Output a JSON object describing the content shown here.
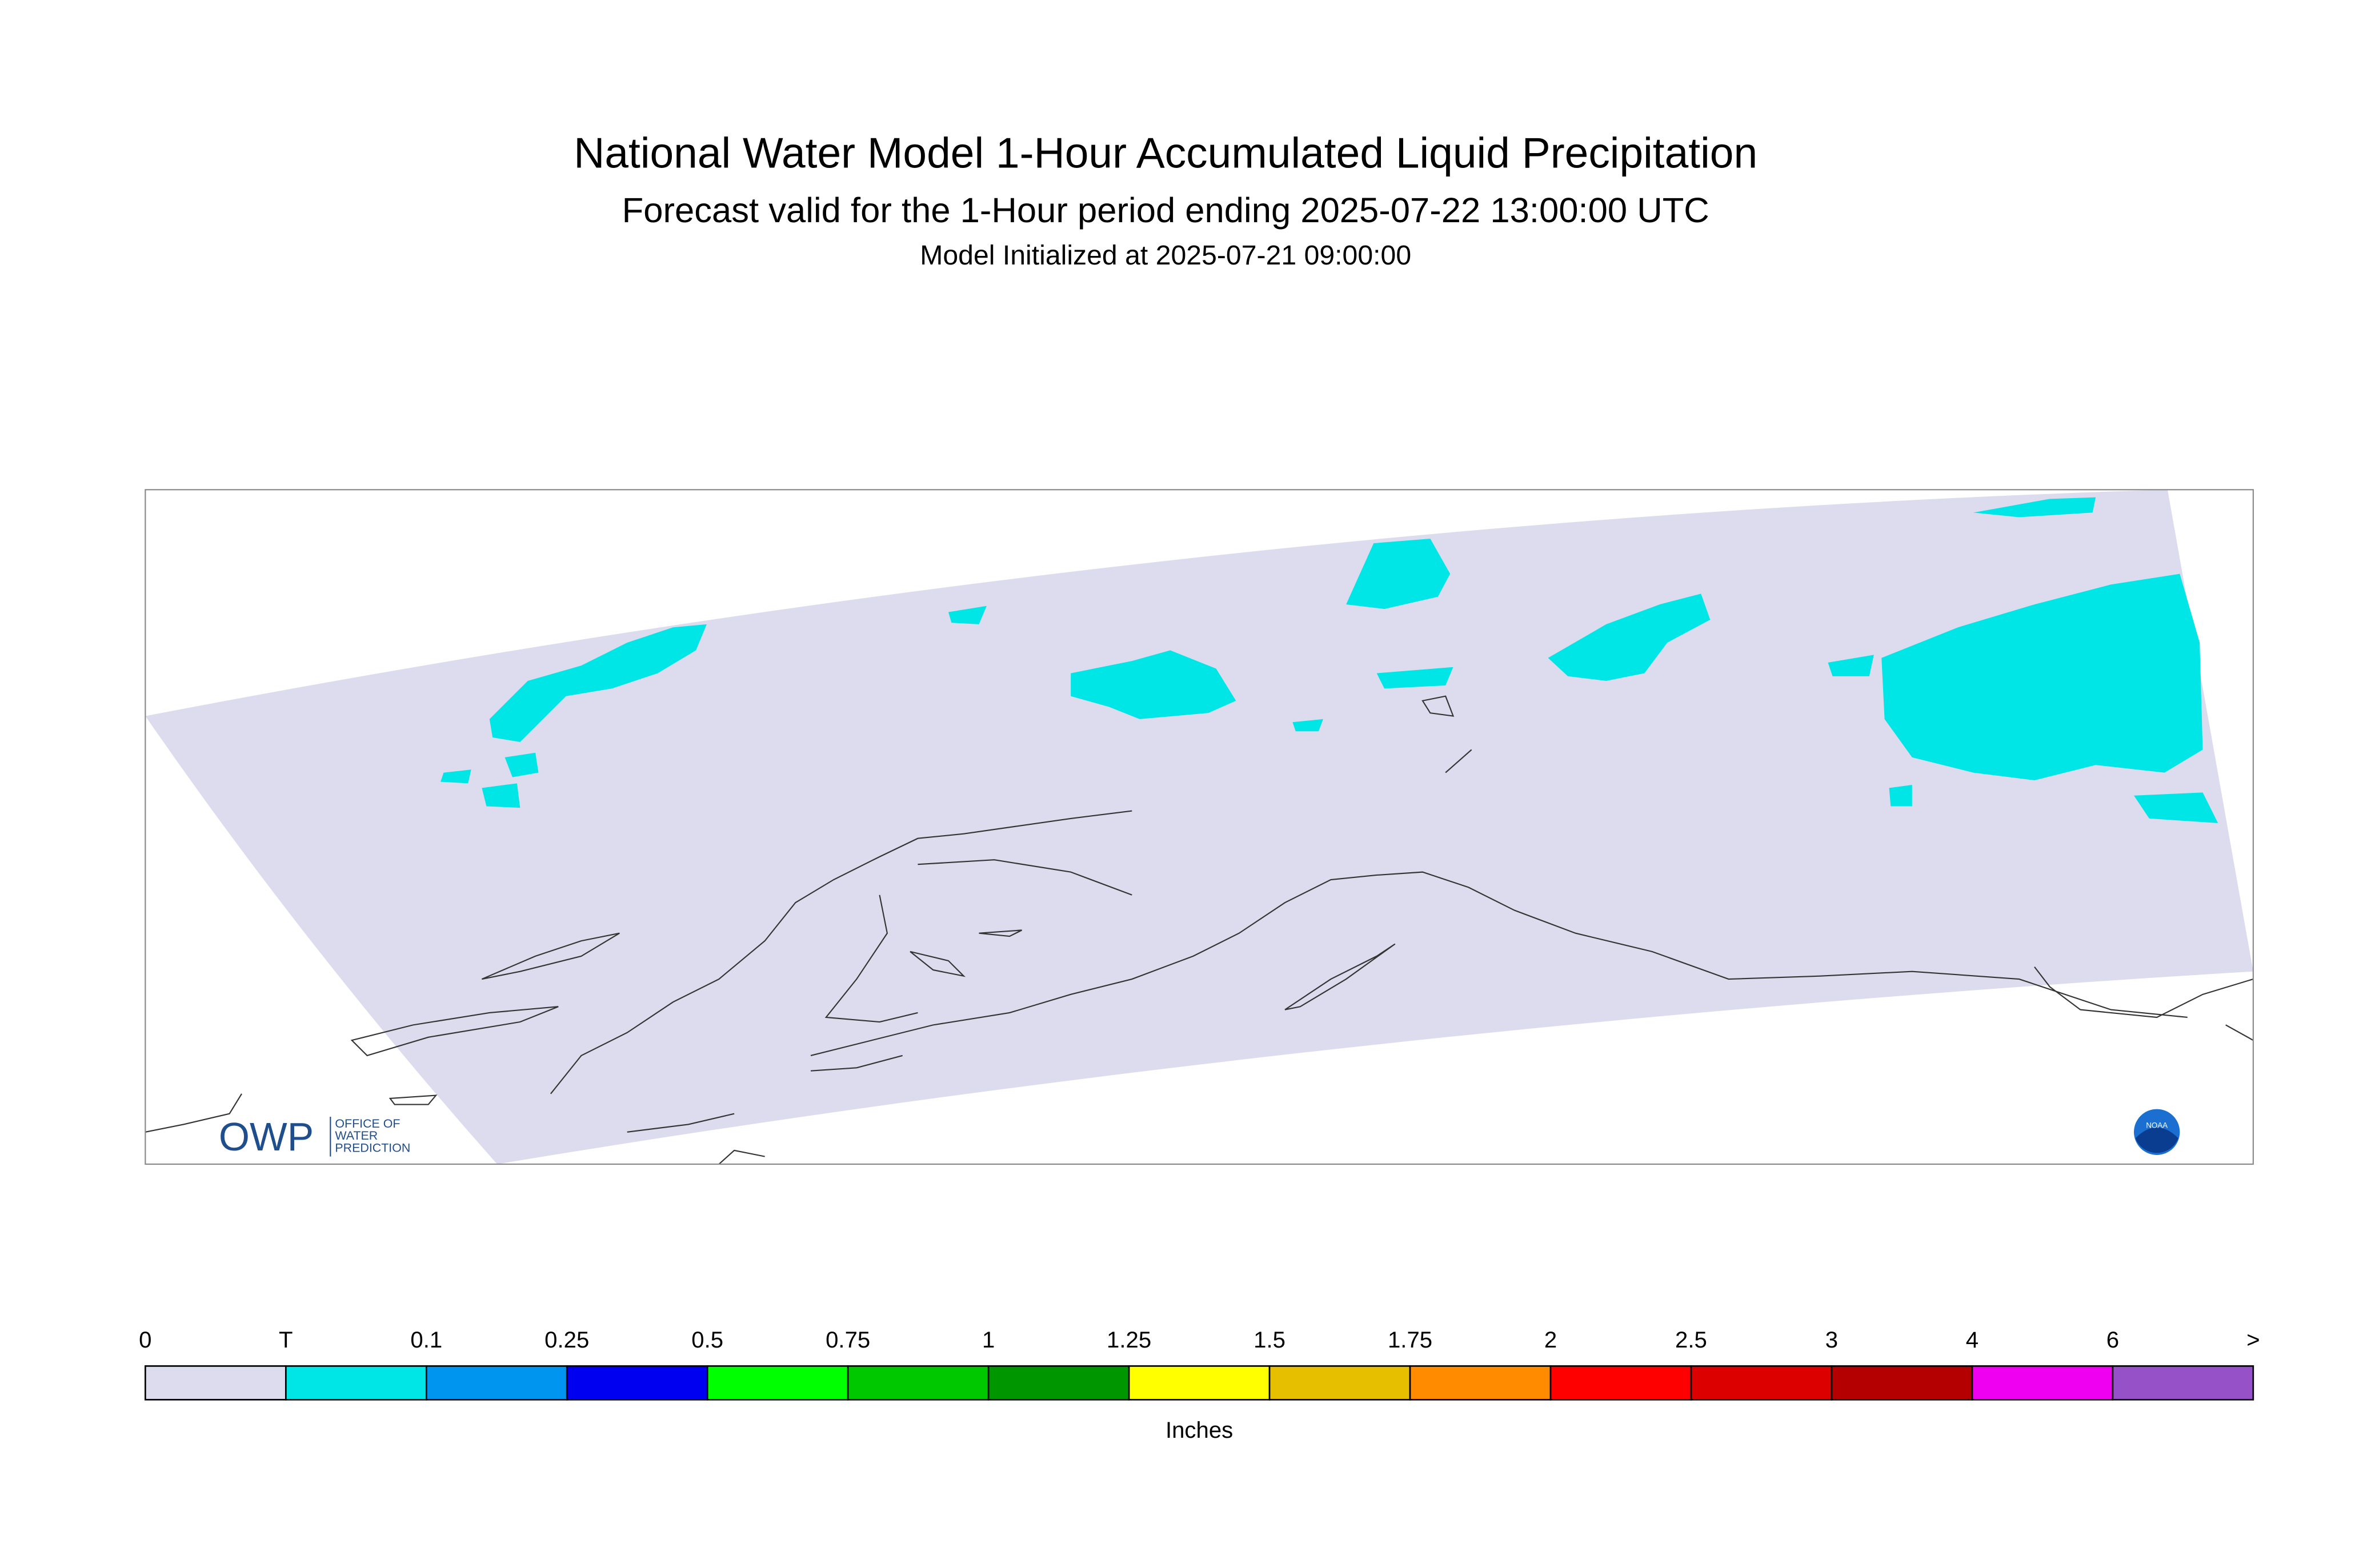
{
  "header": {
    "title": "National Water Model 1-Hour Accumulated Liquid Precipitation",
    "subtitle": "Forecast valid for the 1-Hour period ending 2025-07-22 13:00:00 UTC",
    "initialized": "Model Initialized at 2025-07-21 09:00:00"
  },
  "logo": {
    "acronym": "OWP",
    "lines": [
      "OFFICE OF",
      "WATER",
      "PREDICTION"
    ],
    "noaa": "NOAA"
  },
  "legend": {
    "labels": [
      "0",
      "T",
      "0.1",
      "0.25",
      "0.5",
      "0.75",
      "1",
      "1.25",
      "1.5",
      "1.75",
      "2",
      "2.5",
      "3",
      "4",
      "6",
      ">"
    ],
    "colors": [
      "#dcdcee",
      "#00e6e6",
      "#0096f0",
      "#0000f0",
      "#00ff00",
      "#00c800",
      "#009600",
      "#ffff00",
      "#e6c000",
      "#ff8c00",
      "#ff0000",
      "#dc0000",
      "#b40000",
      "#f000f0",
      "#9650c8"
    ],
    "units": "Inches"
  }
}
